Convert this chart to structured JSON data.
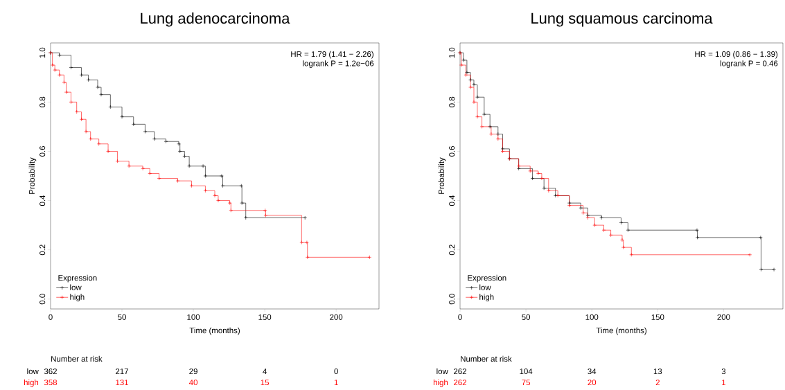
{
  "chart_data": [
    {
      "type": "step",
      "title": "Lung adenocarcinoma",
      "xlabel": "Time (months)",
      "ylabel": "Probability",
      "legend_title": "Expression",
      "legend": "bottom left",
      "marker": "cross",
      "xlim": [
        0,
        230
      ],
      "ylim": [
        -0.04,
        1.04
      ],
      "xticks": [
        0,
        50,
        100,
        150,
        200
      ],
      "yticks": [
        {
          "value": 0,
          "label": "0.0"
        },
        {
          "value": 0.2,
          "label": "0.2"
        },
        {
          "value": 0.4,
          "label": "0.4"
        },
        {
          "value": 0.6,
          "label": "0.6"
        },
        {
          "value": 0.8,
          "label": "0.8"
        },
        {
          "value": 1,
          "label": "1.0"
        }
      ],
      "series": [
        {
          "name": "low",
          "color": "#000000",
          "x": [
            0,
            6.2,
            14.3,
            21.6,
            26.5,
            33,
            35.4,
            41.9,
            50,
            58.1,
            66.2,
            72.7,
            80.8,
            89.8,
            90.6,
            93.8,
            97.1,
            106.8,
            108.4,
            119.8,
            120.6,
            133.6,
            134,
            136.7,
            178.2
          ],
          "values": [
            1.0,
            0.99,
            0.94,
            0.91,
            0.89,
            0.86,
            0.83,
            0.78,
            0.74,
            0.71,
            0.68,
            0.65,
            0.64,
            0.63,
            0.6,
            0.58,
            0.54,
            0.54,
            0.5,
            0.5,
            0.46,
            0.46,
            0.39,
            0.33,
            0.33
          ]
        },
        {
          "name": "high",
          "color": "#ff0000",
          "x": [
            0,
            1.3,
            3,
            6.2,
            9.4,
            11,
            14.3,
            18.3,
            21.6,
            24.8,
            28,
            33.8,
            40.3,
            46.8,
            54.9,
            64.6,
            69.5,
            76,
            89,
            98.7,
            108.4,
            115,
            117.4,
            125.5,
            126.3,
            150.3,
            150.6,
            175.8,
            179.5,
            179.9,
            223.4
          ],
          "values": [
            1.0,
            0.95,
            0.93,
            0.91,
            0.88,
            0.84,
            0.8,
            0.76,
            0.73,
            0.68,
            0.65,
            0.63,
            0.6,
            0.56,
            0.54,
            0.53,
            0.51,
            0.49,
            0.48,
            0.46,
            0.44,
            0.42,
            0.4,
            0.39,
            0.36,
            0.36,
            0.34,
            0.23,
            0.23,
            0.17,
            0.17
          ]
        }
      ],
      "annotations": [
        "HR = 1.79 (1.41 − 2.26)",
        "logrank P = 1.2e−06",
        "Number at risk",
        "low",
        "362",
        "217",
        "29",
        "4",
        "0",
        "high",
        "358",
        "131",
        "40",
        "15",
        "1"
      ]
    },
    {
      "type": "step",
      "title": "Lung squamous carcinoma",
      "xlabel": "Time (months)",
      "ylabel": "Probability",
      "legend_title": "Expression",
      "legend": "bottom left",
      "marker": "cross",
      "xlim": [
        0,
        245
      ],
      "ylim": [
        -0.04,
        1.04
      ],
      "xticks": [
        0,
        50,
        100,
        150,
        200
      ],
      "yticks": [
        {
          "value": 0,
          "label": "0.0"
        },
        {
          "value": 0.2,
          "label": "0.2"
        },
        {
          "value": 0.4,
          "label": "0.4"
        },
        {
          "value": 0.6,
          "label": "0.6"
        },
        {
          "value": 0.8,
          "label": "0.8"
        },
        {
          "value": 1,
          "label": "1.0"
        }
      ],
      "series": [
        {
          "name": "low",
          "color": "#000000",
          "x": [
            0,
            2.6,
            5.2,
            7.9,
            10.5,
            13.1,
            18.3,
            22.7,
            28.8,
            32.3,
            37.5,
            44.5,
            54.9,
            63.7,
            72.4,
            82.9,
            91.6,
            96.9,
            107.3,
            122.2,
            127.4,
            179.8,
            180.1,
            228.1,
            228.4,
            238.2
          ],
          "values": [
            1.0,
            0.97,
            0.92,
            0.89,
            0.87,
            0.82,
            0.75,
            0.7,
            0.67,
            0.61,
            0.57,
            0.53,
            0.49,
            0.45,
            0.42,
            0.39,
            0.37,
            0.34,
            0.33,
            0.31,
            0.28,
            0.28,
            0.25,
            0.25,
            0.12,
            0.12
          ]
        },
        {
          "name": "high",
          "color": "#ff0000",
          "x": [
            0,
            0.9,
            4.4,
            7.9,
            10.5,
            13.1,
            16.6,
            23.6,
            28.8,
            32.3,
            37.5,
            44.5,
            53.2,
            59.3,
            62,
            67.2,
            74.2,
            82.9,
            93.4,
            96.9,
            102.1,
            109.1,
            114.4,
            123,
            123.9,
            130,
            219.9
          ],
          "values": [
            1.0,
            0.95,
            0.91,
            0.86,
            0.8,
            0.74,
            0.7,
            0.67,
            0.65,
            0.6,
            0.57,
            0.54,
            0.52,
            0.51,
            0.49,
            0.44,
            0.42,
            0.38,
            0.35,
            0.33,
            0.3,
            0.28,
            0.26,
            0.24,
            0.21,
            0.18,
            0.18
          ]
        }
      ],
      "annotations": [
        "HR = 1.09 (0.86 − 1.39)",
        "logrank P = 0.46",
        "Number at risk",
        "low",
        "262",
        "104",
        "34",
        "13",
        "3",
        "high",
        "262",
        "75",
        "20",
        "2",
        "1"
      ]
    }
  ]
}
